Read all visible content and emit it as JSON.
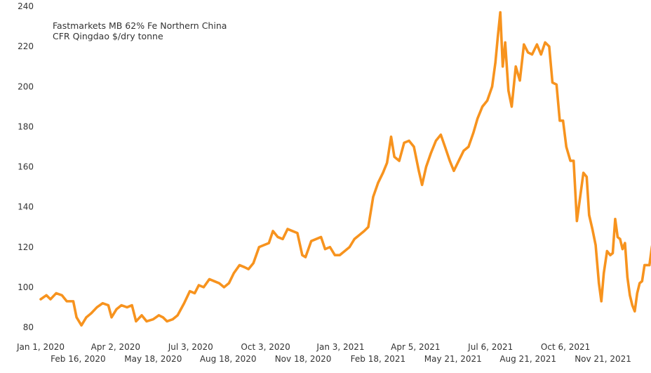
{
  "chart_data": {
    "type": "line",
    "legend": [
      "Fastmarkets MB 62% Fe Northern China",
      "CFR Qingdao $/dry tonne"
    ],
    "legend_placement": "top-left",
    "grid": false,
    "ylim": [
      80,
      240
    ],
    "yticks": [
      80,
      100,
      120,
      140,
      160,
      180,
      200,
      220,
      240
    ],
    "xlim": [
      "2020-01-01",
      "2021-12-31"
    ],
    "xticks_row1": [
      "Jan 1, 2020",
      "Apr 2, 2020",
      "Jul 3, 2020",
      "Oct 3, 2020",
      "Jan 3, 2021",
      "Apr 5, 2021",
      "Jul 6, 2021",
      "Oct 6, 2021"
    ],
    "xticks_row2": [
      "Feb 16, 2020",
      "May 18, 2020",
      "Aug 18, 2020",
      "Nov 18, 2020",
      "Feb 18, 2021",
      "May 21, 2021",
      "Aug 21, 2021",
      "Nov 21, 2021"
    ],
    "series": [
      {
        "color": "#F7931E",
        "points": [
          [
            "2020-01-01",
            94
          ],
          [
            "2020-01-08",
            96
          ],
          [
            "2020-01-13",
            94
          ],
          [
            "2020-01-20",
            97
          ],
          [
            "2020-01-27",
            96
          ],
          [
            "2020-02-02",
            93
          ],
          [
            "2020-02-10",
            93
          ],
          [
            "2020-02-14",
            85
          ],
          [
            "2020-02-20",
            81
          ],
          [
            "2020-02-26",
            85
          ],
          [
            "2020-03-03",
            87
          ],
          [
            "2020-03-10",
            90
          ],
          [
            "2020-03-17",
            92
          ],
          [
            "2020-03-24",
            91
          ],
          [
            "2020-03-28",
            85
          ],
          [
            "2020-04-03",
            89
          ],
          [
            "2020-04-09",
            91
          ],
          [
            "2020-04-16",
            90
          ],
          [
            "2020-04-22",
            91
          ],
          [
            "2020-04-27",
            83
          ],
          [
            "2020-05-04",
            86
          ],
          [
            "2020-05-10",
            83
          ],
          [
            "2020-05-18",
            84
          ],
          [
            "2020-05-25",
            86
          ],
          [
            "2020-05-30",
            85
          ],
          [
            "2020-06-04",
            83
          ],
          [
            "2020-06-11",
            84
          ],
          [
            "2020-06-17",
            86
          ],
          [
            "2020-06-25",
            92
          ],
          [
            "2020-07-02",
            98
          ],
          [
            "2020-07-08",
            97
          ],
          [
            "2020-07-13",
            101
          ],
          [
            "2020-07-19",
            100
          ],
          [
            "2020-07-26",
            104
          ],
          [
            "2020-08-01",
            103
          ],
          [
            "2020-08-07",
            102
          ],
          [
            "2020-08-13",
            100
          ],
          [
            "2020-08-19",
            102
          ],
          [
            "2020-08-25",
            107
          ],
          [
            "2020-09-01",
            111
          ],
          [
            "2020-09-07",
            110
          ],
          [
            "2020-09-12",
            109
          ],
          [
            "2020-09-18",
            112
          ],
          [
            "2020-09-25",
            120
          ],
          [
            "2020-10-01",
            121
          ],
          [
            "2020-10-07",
            122
          ],
          [
            "2020-10-12",
            128
          ],
          [
            "2020-10-18",
            125
          ],
          [
            "2020-10-24",
            124
          ],
          [
            "2020-10-30",
            129
          ],
          [
            "2020-11-05",
            128
          ],
          [
            "2020-11-11",
            127
          ],
          [
            "2020-11-17",
            116
          ],
          [
            "2020-11-21",
            115
          ],
          [
            "2020-11-28",
            123
          ],
          [
            "2020-12-04",
            124
          ],
          [
            "2020-12-10",
            125
          ],
          [
            "2020-12-15",
            119
          ],
          [
            "2020-12-21",
            120
          ],
          [
            "2020-12-27",
            116
          ],
          [
            "2021-01-02",
            116
          ],
          [
            "2021-01-08",
            118
          ],
          [
            "2021-01-14",
            120
          ],
          [
            "2021-01-20",
            124
          ],
          [
            "2021-01-26",
            126
          ],
          [
            "2021-02-01",
            128
          ],
          [
            "2021-02-06",
            130
          ],
          [
            "2021-02-12",
            145
          ],
          [
            "2021-02-18",
            152
          ],
          [
            "2021-02-24",
            157
          ],
          [
            "2021-03-01",
            162
          ],
          [
            "2021-03-06",
            175
          ],
          [
            "2021-03-10",
            165
          ],
          [
            "2021-03-16",
            163
          ],
          [
            "2021-03-22",
            172
          ],
          [
            "2021-03-28",
            173
          ],
          [
            "2021-04-03",
            170
          ],
          [
            "2021-04-09",
            158
          ],
          [
            "2021-04-13",
            151
          ],
          [
            "2021-04-18",
            160
          ],
          [
            "2021-04-24",
            167
          ],
          [
            "2021-04-30",
            173
          ],
          [
            "2021-05-06",
            176
          ],
          [
            "2021-05-12",
            169
          ],
          [
            "2021-05-17",
            163
          ],
          [
            "2021-05-22",
            158
          ],
          [
            "2021-05-28",
            163
          ],
          [
            "2021-06-03",
            168
          ],
          [
            "2021-06-09",
            170
          ],
          [
            "2021-06-15",
            177
          ],
          [
            "2021-06-20",
            184
          ],
          [
            "2021-06-26",
            190
          ],
          [
            "2021-07-02",
            193
          ],
          [
            "2021-07-08",
            200
          ],
          [
            "2021-07-12",
            212
          ],
          [
            "2021-07-15",
            225
          ],
          [
            "2021-07-18",
            237
          ],
          [
            "2021-07-21",
            210
          ],
          [
            "2021-07-24",
            222
          ],
          [
            "2021-07-28",
            198
          ],
          [
            "2021-08-01",
            190
          ],
          [
            "2021-08-06",
            210
          ],
          [
            "2021-08-11",
            203
          ],
          [
            "2021-08-16",
            221
          ],
          [
            "2021-08-21",
            217
          ],
          [
            "2021-08-26",
            216
          ],
          [
            "2021-09-01",
            221
          ],
          [
            "2021-09-06",
            216
          ],
          [
            "2021-09-11",
            222
          ],
          [
            "2021-09-16",
            220
          ],
          [
            "2021-09-20",
            202
          ],
          [
            "2021-09-25",
            201
          ],
          [
            "2021-09-29",
            183
          ],
          [
            "2021-10-03",
            183
          ],
          [
            "2021-10-07",
            170
          ],
          [
            "2021-10-12",
            163
          ],
          [
            "2021-10-16",
            163
          ],
          [
            "2021-10-20",
            133
          ],
          [
            "2021-10-24",
            145
          ],
          [
            "2021-10-28",
            157
          ],
          [
            "2021-11-01",
            155
          ],
          [
            "2021-11-04",
            136
          ],
          [
            "2021-11-08",
            129
          ],
          [
            "2021-11-12",
            121
          ],
          [
            "2021-11-16",
            102
          ],
          [
            "2021-11-19",
            93
          ],
          [
            "2021-11-22",
            107
          ],
          [
            "2021-11-26",
            118
          ],
          [
            "2021-11-30",
            116
          ],
          [
            "2021-12-03",
            117
          ],
          [
            "2021-12-06",
            134
          ],
          [
            "2021-12-09",
            125
          ],
          [
            "2021-12-12",
            124
          ],
          [
            "2021-12-15",
            119
          ],
          [
            "2021-12-18",
            122
          ],
          [
            "2021-12-21",
            105
          ],
          [
            "2021-12-24",
            96
          ],
          [
            "2021-12-27",
            91
          ],
          [
            "2021-12-30",
            88
          ],
          [
            "2022-01-02",
            97
          ],
          [
            "2022-01-05",
            102
          ],
          [
            "2022-01-08",
            103
          ],
          [
            "2022-01-11",
            111
          ],
          [
            "2022-01-14",
            111
          ],
          [
            "2022-01-17",
            111
          ],
          [
            "2022-01-20",
            120
          ],
          [
            "2022-01-23",
            126
          ]
        ]
      }
    ]
  }
}
